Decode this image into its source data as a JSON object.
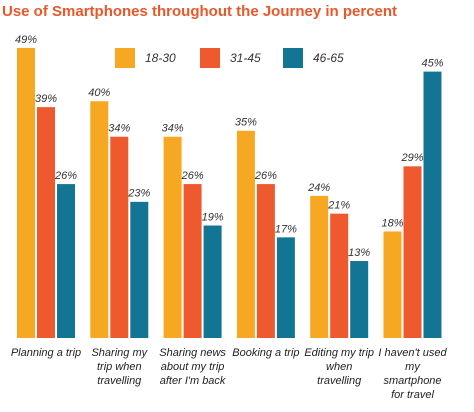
{
  "chart_data": {
    "type": "bar",
    "title": "Use of Smartphones throughout the Journey in percent",
    "categories": [
      "Planning a trip",
      "Sharing my trip when travelling",
      "Sharing news about my trip after I'm back",
      "Booking a trip",
      "Editing my trip when travelling",
      "I haven't used my smartphone for travel"
    ],
    "series": [
      {
        "name": "18-30",
        "color": "#f7a823",
        "values": [
          49,
          40,
          34,
          35,
          24,
          18
        ],
        "value_labels": [
          "49%",
          "40%",
          "34%",
          "35%",
          "24%",
          "18%"
        ]
      },
      {
        "name": "31-45",
        "color": "#ee5a2d",
        "values": [
          39,
          34,
          26,
          26,
          21,
          29
        ],
        "value_labels": [
          "39%",
          "34%",
          "26%",
          "26%",
          "21%",
          "29%"
        ]
      },
      {
        "name": "46-65",
        "color": "#137594",
        "values": [
          26,
          23,
          19,
          17,
          13,
          45
        ],
        "value_labels": [
          "26%",
          "23%",
          "19%",
          "17%",
          "13%",
          "45%"
        ]
      }
    ],
    "ylim": [
      0,
      50
    ]
  }
}
